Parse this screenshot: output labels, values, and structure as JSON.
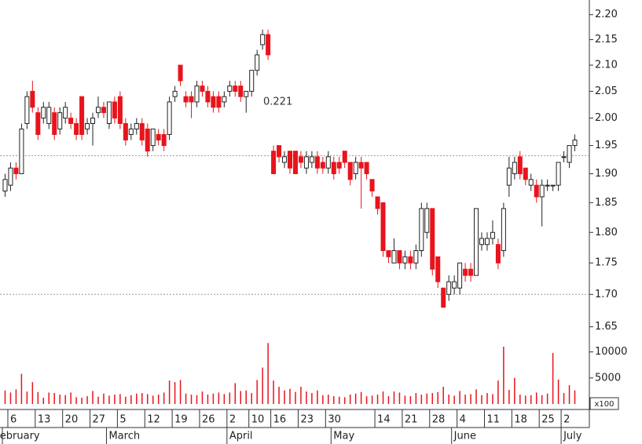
{
  "chart_data": {
    "type": "candlestick",
    "annotation": "0.221",
    "categories": [
      null,
      "6",
      null,
      null,
      null,
      null,
      "13",
      null,
      null,
      null,
      null,
      "20",
      null,
      null,
      null,
      null,
      "27",
      null,
      null,
      null,
      null,
      "5",
      null,
      null,
      null,
      null,
      "12",
      null,
      null,
      null,
      null,
      "19",
      null,
      null,
      null,
      null,
      "26",
      null,
      null,
      null,
      null,
      "2",
      null,
      null,
      null,
      "10",
      null,
      null,
      null,
      "16",
      null,
      null,
      null,
      null,
      "23",
      null,
      null,
      null,
      null,
      "30",
      null,
      null,
      null,
      null,
      null,
      null,
      null,
      null,
      "14",
      null,
      null,
      null,
      null,
      "21",
      null,
      null,
      null,
      null,
      "28",
      null,
      null,
      null,
      null,
      "4",
      null,
      null,
      null,
      null,
      "11",
      null,
      null,
      null,
      null,
      "18",
      null,
      null,
      null,
      null,
      "25",
      null,
      null,
      null,
      "2",
      null,
      null
    ],
    "months": [
      {
        "label": "February",
        "index": 0
      },
      {
        "label": "March",
        "index": 19
      },
      {
        "label": "April",
        "index": 41
      },
      {
        "label": "May",
        "index": 60
      },
      {
        "label": "June",
        "index": 82
      },
      {
        "label": "July",
        "index": 102
      }
    ],
    "open": [
      1.87,
      1.88,
      1.91,
      1.9,
      1.99,
      2.05,
      2.01,
      2.0,
      1.99,
      2.01,
      1.98,
      2.0,
      2.0,
      1.99,
      2.04,
      1.98,
      1.99,
      2.01,
      2.02,
      1.99,
      2.03,
      2.04,
      1.99,
      1.97,
      1.98,
      1.99,
      1.98,
      1.95,
      1.97,
      1.97,
      1.97,
      2.04,
      2.1,
      2.04,
      2.04,
      2.03,
      2.06,
      2.05,
      2.04,
      2.04,
      2.03,
      2.05,
      2.06,
      2.06,
      2.04,
      2.05,
      2.09,
      2.14,
      2.16,
      1.94,
      1.95,
      1.92,
      1.94,
      1.94,
      1.93,
      1.91,
      1.92,
      1.93,
      1.92,
      1.91,
      1.92,
      1.92,
      1.94,
      1.92,
      1.9,
      1.92,
      1.92,
      1.89,
      1.86,
      1.85,
      1.77,
      1.75,
      1.77,
      1.75,
      1.76,
      1.75,
      1.77,
      1.8,
      1.84,
      1.76,
      1.71,
      1.7,
      1.71,
      1.71,
      1.74,
      1.74,
      1.73,
      1.78,
      1.78,
      1.79,
      1.78,
      1.77,
      1.88,
      1.9,
      1.93,
      1.91,
      1.88,
      1.88,
      1.86,
      1.88,
      1.88,
      1.88,
      1.93,
      1.92,
      1.95
    ],
    "high": [
      1.9,
      1.92,
      1.92,
      1.99,
      2.05,
      2.07,
      2.02,
      2.03,
      2.03,
      2.02,
      2.02,
      2.03,
      2.01,
      2.0,
      2.04,
      2.0,
      2.01,
      2.04,
      2.03,
      2.03,
      2.04,
      2.05,
      2.0,
      1.99,
      2.0,
      2.0,
      1.99,
      1.98,
      1.98,
      1.98,
      2.04,
      2.06,
      2.1,
      2.05,
      2.05,
      2.07,
      2.07,
      2.06,
      2.05,
      2.05,
      2.05,
      2.07,
      2.07,
      2.07,
      2.05,
      2.09,
      2.13,
      2.17,
      2.17,
      1.95,
      1.95,
      1.94,
      1.94,
      1.94,
      1.94,
      1.94,
      1.94,
      1.94,
      1.93,
      1.94,
      1.93,
      1.93,
      1.94,
      1.92,
      1.93,
      1.93,
      1.92,
      1.89,
      1.86,
      1.85,
      1.77,
      1.79,
      1.77,
      1.77,
      1.77,
      1.78,
      1.85,
      1.85,
      1.84,
      1.76,
      1.71,
      1.73,
      1.73,
      1.75,
      1.75,
      1.75,
      1.84,
      1.8,
      1.8,
      1.82,
      1.79,
      1.85,
      1.93,
      1.93,
      1.94,
      1.91,
      1.9,
      1.89,
      1.89,
      1.89,
      1.88,
      1.92,
      1.94,
      1.95,
      1.97
    ],
    "low": [
      1.86,
      1.87,
      1.89,
      1.9,
      1.98,
      2.01,
      1.96,
      1.99,
      1.98,
      1.96,
      1.97,
      1.99,
      1.98,
      1.96,
      1.96,
      1.97,
      1.95,
      2.0,
      2.0,
      1.98,
      1.99,
      1.98,
      1.95,
      1.96,
      1.97,
      1.95,
      1.93,
      1.94,
      1.95,
      1.94,
      1.96,
      2.03,
      2.06,
      2.02,
      2.0,
      2.02,
      2.04,
      2.02,
      2.01,
      2.01,
      2.02,
      2.04,
      2.04,
      2.03,
      2.01,
      2.04,
      2.08,
      2.13,
      2.11,
      1.9,
      1.92,
      1.91,
      1.9,
      1.9,
      1.91,
      1.9,
      1.91,
      1.9,
      1.9,
      1.9,
      1.89,
      1.9,
      1.91,
      1.88,
      1.89,
      1.84,
      1.89,
      1.86,
      1.83,
      1.76,
      1.75,
      1.75,
      1.74,
      1.74,
      1.74,
      1.74,
      1.76,
      1.79,
      1.73,
      1.71,
      1.68,
      1.69,
      1.7,
      1.7,
      1.72,
      1.72,
      1.73,
      1.77,
      1.77,
      1.78,
      1.74,
      1.76,
      1.86,
      1.89,
      1.89,
      1.88,
      1.87,
      1.85,
      1.81,
      1.87,
      1.87,
      1.87,
      1.92,
      1.91,
      1.94
    ],
    "close": [
      1.89,
      1.91,
      1.9,
      1.98,
      2.04,
      2.02,
      1.97,
      2.02,
      2.02,
      1.97,
      2.01,
      2.02,
      1.99,
      1.97,
      1.97,
      1.99,
      2.0,
      2.02,
      2.01,
      2.03,
      2.0,
      1.99,
      1.96,
      1.98,
      1.99,
      1.96,
      1.94,
      1.98,
      1.96,
      1.95,
      2.03,
      2.05,
      2.07,
      2.03,
      2.03,
      2.06,
      2.05,
      2.03,
      2.02,
      2.02,
      2.04,
      2.06,
      2.05,
      2.04,
      2.05,
      2.09,
      2.12,
      2.16,
      2.12,
      1.9,
      1.93,
      1.93,
      1.91,
      1.9,
      1.92,
      1.93,
      1.93,
      1.91,
      1.91,
      1.93,
      1.9,
      1.91,
      1.92,
      1.89,
      1.92,
      1.91,
      1.9,
      1.87,
      1.84,
      1.77,
      1.76,
      1.77,
      1.75,
      1.76,
      1.75,
      1.77,
      1.84,
      1.84,
      1.74,
      1.72,
      1.68,
      1.72,
      1.72,
      1.75,
      1.73,
      1.73,
      1.84,
      1.79,
      1.79,
      1.8,
      1.75,
      1.84,
      1.91,
      1.92,
      1.9,
      1.89,
      1.89,
      1.86,
      1.88,
      1.88,
      1.88,
      1.92,
      1.93,
      1.95,
      1.96
    ],
    "volume": [
      2600,
      2200,
      2800,
      5800,
      2400,
      4200,
      2300,
      1200,
      2200,
      2100,
      1800,
      1700,
      2200,
      1300,
      1200,
      1500,
      2500,
      1400,
      2000,
      1600,
      1800,
      1900,
      1400,
      1700,
      2000,
      2100,
      1900,
      1600,
      1800,
      2200,
      4500,
      4200,
      4600,
      2000,
      1800,
      1700,
      2400,
      1800,
      2000,
      2200,
      1900,
      2200,
      4000,
      2500,
      2600,
      2100,
      4600,
      7000,
      11700,
      4500,
      3300,
      2600,
      2900,
      2300,
      3300,
      2400,
      2100,
      2600,
      1700,
      1800,
      1500,
      1400,
      1300,
      1800,
      2000,
      2300,
      1500,
      1600,
      1800,
      2400,
      1500,
      2400,
      2200,
      1600,
      1500,
      2100,
      1800,
      2000,
      2100,
      2300,
      3300,
      1800,
      1600,
      2500,
      1800,
      1900,
      2800,
      1700,
      2100,
      1900,
      4500,
      11000,
      2700,
      5000,
      1800,
      1600,
      1700,
      2200,
      1700,
      2000,
      9800,
      4700,
      2100,
      3600,
      2600
    ],
    "up_color": "#ffffff",
    "down_color": "#e8141c",
    "volume_color": "#e8141c",
    "ylim": [
      1.64,
      2.23
    ],
    "log_scale": true,
    "yticks": [
      {
        "value": 1.65,
        "label": "1.65"
      },
      {
        "value": 1.7,
        "label": "1.70"
      },
      {
        "value": 1.75,
        "label": "1.75"
      },
      {
        "value": 1.8,
        "label": "1.80"
      },
      {
        "value": 1.85,
        "label": "1.85"
      },
      {
        "value": 1.9,
        "label": "1.90"
      },
      {
        "value": 1.95,
        "label": "1.95"
      },
      {
        "value": 2.0,
        "label": "2.00"
      },
      {
        "value": 2.05,
        "label": "2.05"
      },
      {
        "value": 2.1,
        "label": "2.10"
      },
      {
        "value": 2.15,
        "label": "2.15"
      },
      {
        "value": 2.2,
        "label": "2.20"
      }
    ],
    "hlines": [
      1.932,
      1.7
    ],
    "y2lim": [
      0,
      12500
    ],
    "y2ticks": [
      5000,
      10000
    ],
    "y2_unit": "x100"
  }
}
